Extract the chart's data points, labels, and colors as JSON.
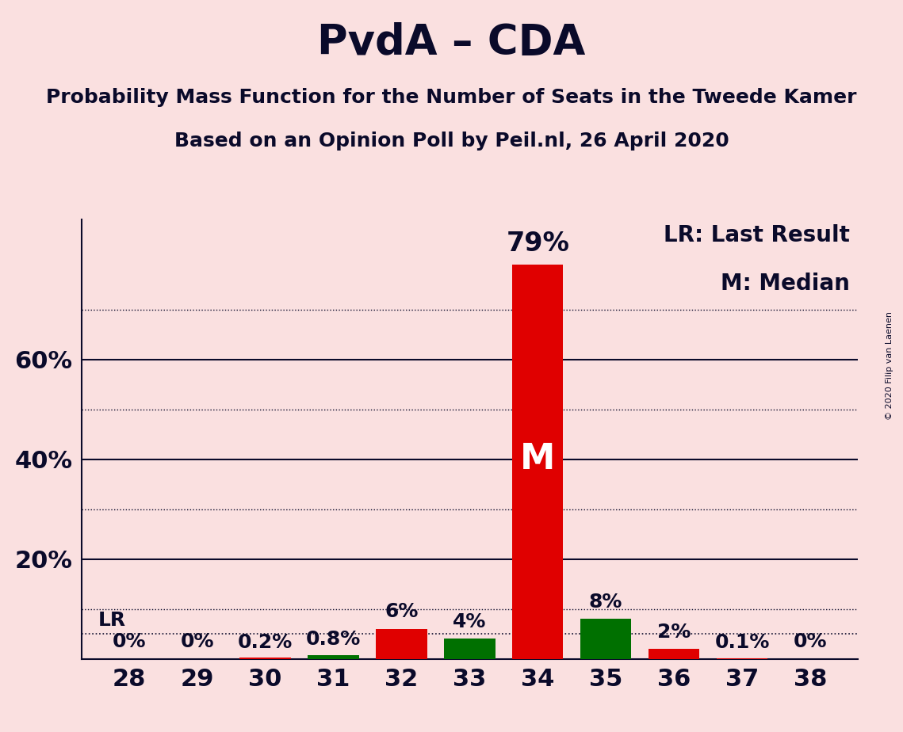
{
  "title": "PvdA – CDA",
  "subtitle1": "Probability Mass Function for the Number of Seats in the Tweede Kamer",
  "subtitle2": "Based on an Opinion Poll by Peil.nl, 26 April 2020",
  "copyright": "© 2020 Filip van Laenen",
  "seats": [
    28,
    29,
    30,
    31,
    32,
    33,
    34,
    35,
    36,
    37,
    38
  ],
  "values": [
    0.0,
    0.0,
    0.2,
    0.8,
    6.0,
    4.0,
    79.0,
    8.0,
    2.0,
    0.1,
    0.0
  ],
  "bar_colors": [
    "#E00000",
    "#E00000",
    "#E00000",
    "#007000",
    "#E00000",
    "#007000",
    "#E00000",
    "#007000",
    "#E00000",
    "#E00000",
    "#E00000"
  ],
  "label_texts": [
    "0%",
    "0%",
    "0.2%",
    "0.8%",
    "6%",
    "4%",
    "79%",
    "8%",
    "2%",
    "0.1%",
    "0%"
  ],
  "median_seat": 34,
  "median_label": "M",
  "lr_value": 5.0,
  "lr_label": "LR",
  "background_color": "#FAE0E0",
  "bar_width": 0.75,
  "ylim_max": 88,
  "yticks_solid": [
    20,
    40,
    60
  ],
  "yticks_dotted": [
    10,
    30,
    50,
    70
  ],
  "legend_text1": "LR: Last Result",
  "legend_text2": "M: Median",
  "title_fontsize": 38,
  "subtitle_fontsize": 18,
  "axis_fontsize": 22,
  "label_fontsize": 18,
  "legend_fontsize": 20,
  "median_fontsize": 32,
  "text_color": "#0a0a2a"
}
